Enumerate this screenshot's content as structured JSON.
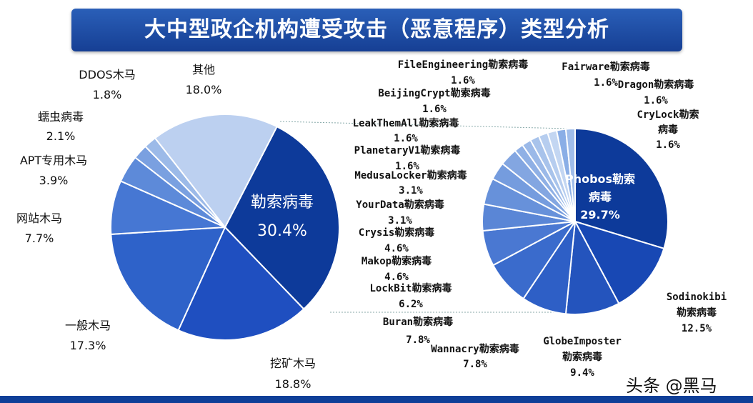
{
  "title": "大中型政企机构遭受攻击（恶意程序）类型分析",
  "watermark": "头条 @黑马",
  "chart_data": [
    {
      "type": "pie",
      "categories": [
        "勒索病毒",
        "挖矿木马",
        "一般木马",
        "网站木马",
        "APT专用木马",
        "蠕虫病毒",
        "DDOS木马",
        "其他"
      ],
      "values": [
        30.4,
        18.8,
        17.3,
        7.7,
        3.9,
        2.1,
        1.8,
        18.0
      ],
      "labels": [
        "30.4%",
        "18.8%",
        "17.3%",
        "7.7%",
        "3.9%",
        "2.1%",
        "1.8%",
        "18.0%"
      ],
      "colors": [
        "#0d3a9a",
        "#1f4fc0",
        "#2e62c9",
        "#4677d3",
        "#5d8ad9",
        "#7aa0e0",
        "#9cbae8",
        "#bcd0f0"
      ]
    },
    {
      "type": "pie",
      "categories": [
        "Phobos勒索病毒",
        "Sodinokibi勒索病毒",
        "GlobeImposter勒索病毒",
        "Wannacry勒索病毒",
        "Buran勒索病毒",
        "LockBit勒索病毒",
        "Makop勒索病毒",
        "Crysis勒索病毒",
        "YourData勒索病毒",
        "MedusaLocker勒索病毒",
        "PlanetaryV1勒索病毒",
        "LeakThemAll勒索病毒",
        "BeijingCrypt勒索病毒",
        "FileEngineering勒索病毒",
        "Fairware勒索病毒",
        "Dragon勒索病毒",
        "CryLock勒索病毒"
      ],
      "values": [
        29.7,
        12.5,
        9.4,
        7.8,
        7.8,
        6.2,
        4.6,
        4.6,
        3.1,
        3.1,
        1.6,
        1.6,
        1.6,
        1.6,
        1.6,
        1.6,
        1.6
      ],
      "labels": [
        "29.7%",
        "12.5%",
        "9.4%",
        "7.8%",
        "7.8%",
        "6.2%",
        "4.6%",
        "4.6%",
        "3.1%",
        "3.1%",
        "1.6%",
        "1.6%",
        "1.6%",
        "1.6%",
        "1.6%",
        "1.6%",
        "1.6%"
      ],
      "colors": [
        "#0d3a9a",
        "#1848b4",
        "#2454bd",
        "#2e5fc6",
        "#3a6bcc",
        "#4a78d2",
        "#5a86d6",
        "#6791da",
        "#759cde",
        "#83a6e1",
        "#8fb0e5",
        "#9bb9e8",
        "#a8c3eb",
        "#b6cdef",
        "#c3d6f2",
        "#8aaee6",
        "#a0bdea"
      ]
    }
  ]
}
